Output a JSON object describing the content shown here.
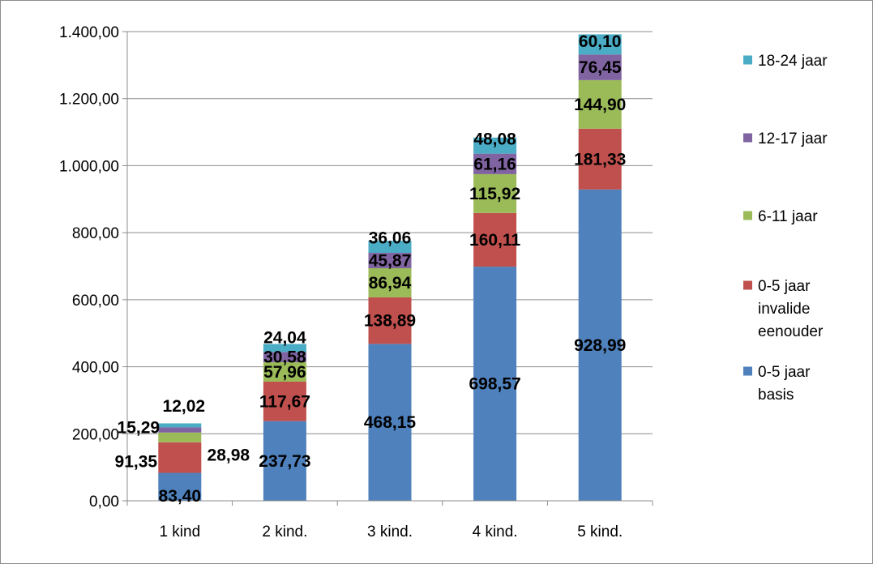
{
  "chart_data": {
    "type": "bar",
    "stacked": true,
    "categories": [
      "1 kind",
      "2 kind.",
      "3 kind.",
      "4 kind.",
      "5 kind."
    ],
    "series": [
      {
        "name": "0-5 jaar basis",
        "color": "#4F81BD",
        "values": [
          83.4,
          237.73,
          468.15,
          698.57,
          928.99
        ],
        "labels": [
          "83,40",
          "237,73",
          "468,15",
          "698,57",
          "928,99"
        ]
      },
      {
        "name": "0-5 jaar invalide eenouder",
        "color": "#C0504D",
        "values": [
          91.35,
          117.67,
          138.89,
          160.11,
          181.33
        ],
        "labels": [
          "91,35",
          "117,67",
          "138,89",
          "160,11",
          "181,33"
        ]
      },
      {
        "name": "6-11 jaar",
        "color": "#9BBB59",
        "values": [
          28.98,
          57.96,
          86.94,
          115.92,
          144.9
        ],
        "labels": [
          "28,98",
          "57,96",
          "86,94",
          "115,92",
          "144,90"
        ]
      },
      {
        "name": "12-17 jaar",
        "color": "#8064A2",
        "values": [
          15.29,
          30.58,
          45.87,
          61.16,
          76.45
        ],
        "labels": [
          "15,29",
          "30,58",
          "45,87",
          "61,16",
          "76,45"
        ]
      },
      {
        "name": "18-24 jaar",
        "color": "#4BACC6",
        "values": [
          12.02,
          24.04,
          36.06,
          48.08,
          60.1
        ],
        "labels": [
          "12,02",
          "24,04",
          "36,06",
          "48,08",
          "60,10"
        ]
      }
    ],
    "ylim": [
      0,
      1400
    ],
    "yticks": [
      0,
      200,
      400,
      600,
      800,
      1000,
      1200,
      1400
    ],
    "ytick_labels": [
      "0,00",
      "200,00",
      "400,00",
      "600,00",
      "800,00",
      "1.000,00",
      "1.200,00",
      "1.400,00"
    ],
    "grid": true,
    "legend": {
      "position": "right",
      "order": [
        "18-24 jaar",
        "12-17 jaar",
        "6-11 jaar",
        "0-5 jaar invalide eenouder",
        "0-5 jaar basis"
      ],
      "entries": [
        {
          "series": "18-24 jaar",
          "lines": [
            "18-24 jaar"
          ]
        },
        {
          "series": "12-17 jaar",
          "lines": [
            "12-17 jaar"
          ]
        },
        {
          "series": "6-11 jaar",
          "lines": [
            "6-11 jaar"
          ]
        },
        {
          "series": "0-5 jaar invalide eenouder",
          "lines": [
            "0-5 jaar",
            "invalide",
            "eenouder"
          ]
        },
        {
          "series": "0-5 jaar basis",
          "lines": [
            "0-5 jaar",
            "basis"
          ]
        }
      ]
    }
  }
}
